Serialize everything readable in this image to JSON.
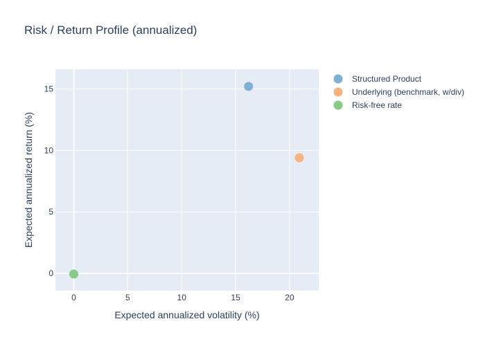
{
  "chart_data": {
    "type": "scatter",
    "title": "Risk / Return Profile (annualized)",
    "xlabel": "Expected annualized volatility (%)",
    "ylabel": "Expected annualized return (%)",
    "xlim": [
      -1.7,
      22.7
    ],
    "ylim": [
      -1.4,
      16.6
    ],
    "xticks": [
      0,
      5,
      10,
      15,
      20
    ],
    "yticks": [
      0,
      5,
      10,
      15
    ],
    "grid": true,
    "legend_position": "right",
    "series": [
      {
        "name": "Structured Product",
        "color": "#7fb0d6",
        "points": [
          {
            "x": 16.2,
            "y": 15.2
          }
        ]
      },
      {
        "name": "Underlying (benchmark, w/div)",
        "color": "#f7b27f",
        "points": [
          {
            "x": 20.9,
            "y": 9.4
          }
        ]
      },
      {
        "name": "Risk-free rate",
        "color": "#86cb86",
        "points": [
          {
            "x": 0.0,
            "y": -0.05
          }
        ]
      }
    ]
  }
}
